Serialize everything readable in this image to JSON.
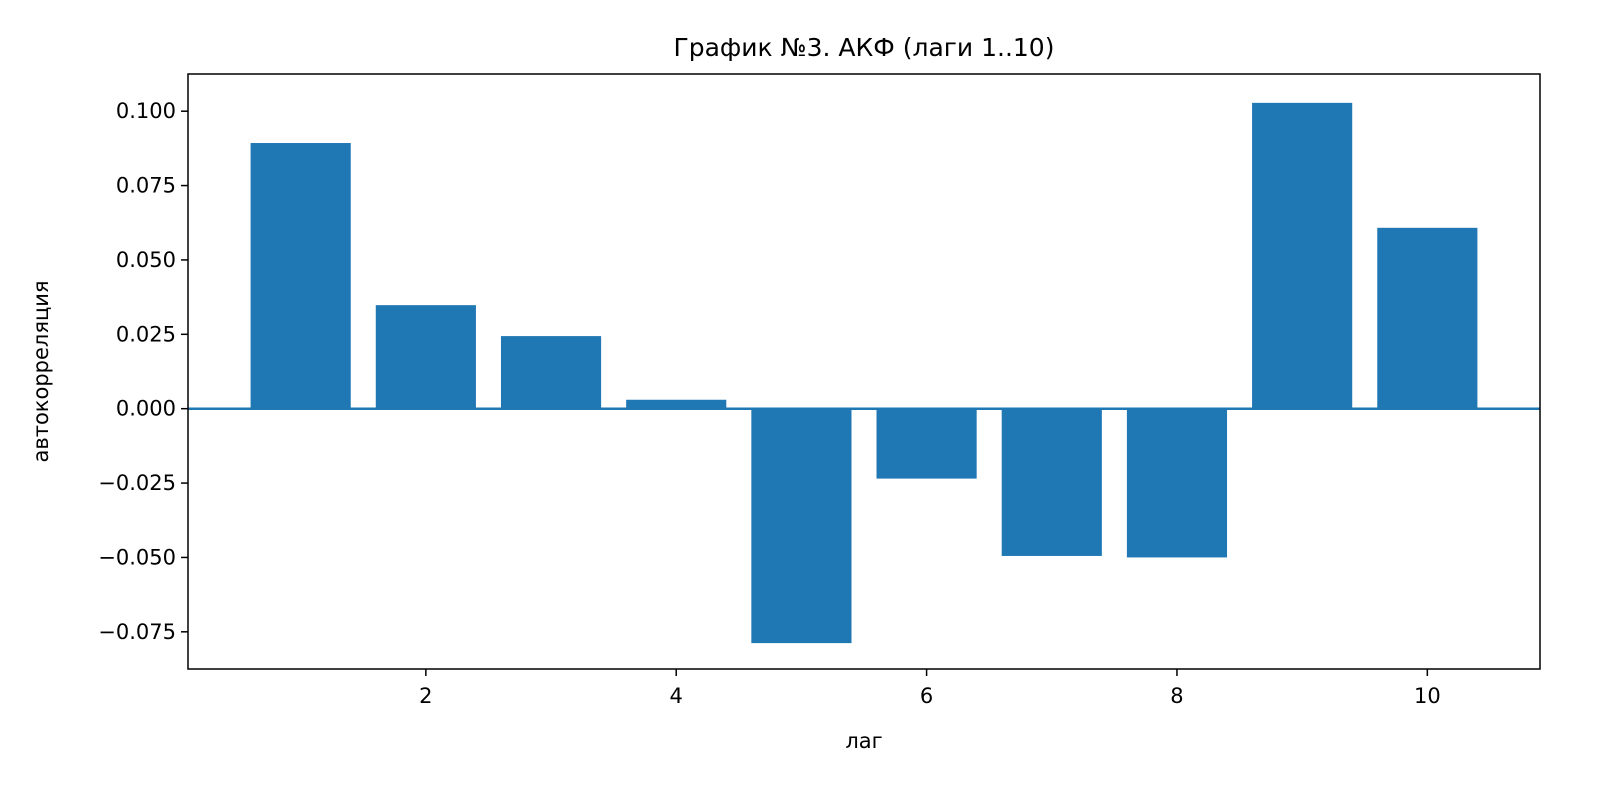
{
  "chart_data": {
    "type": "bar",
    "title": "График №3. АКФ (лаги 1..10)",
    "xlabel": "лаг",
    "ylabel": "автокорреляция",
    "x": [
      1,
      2,
      3,
      4,
      5,
      6,
      7,
      8,
      9,
      10
    ],
    "values": [
      0.0893,
      0.0348,
      0.0244,
      0.003,
      -0.0788,
      -0.0235,
      -0.0495,
      -0.05,
      0.1028,
      0.0608
    ],
    "xlim": [
      0.1,
      10.9
    ],
    "ylim": [
      -0.0875,
      0.1125
    ],
    "xticks": [
      2,
      4,
      6,
      8,
      10
    ],
    "xtick_labels": [
      "2",
      "4",
      "6",
      "8",
      "10"
    ],
    "yticks": [
      -0.075,
      -0.05,
      -0.025,
      0,
      0.025,
      0.05,
      0.075,
      0.1
    ],
    "ytick_labels": [
      "−0.075",
      "−0.050",
      "−0.025",
      "0.000",
      "0.025",
      "0.050",
      "0.075",
      "0.100"
    ],
    "zero_line": true,
    "grid": false,
    "legend": "none",
    "colors": {
      "bar": "#1f77b4",
      "zero_line": "#1f77b4",
      "axes": "#000000"
    }
  }
}
